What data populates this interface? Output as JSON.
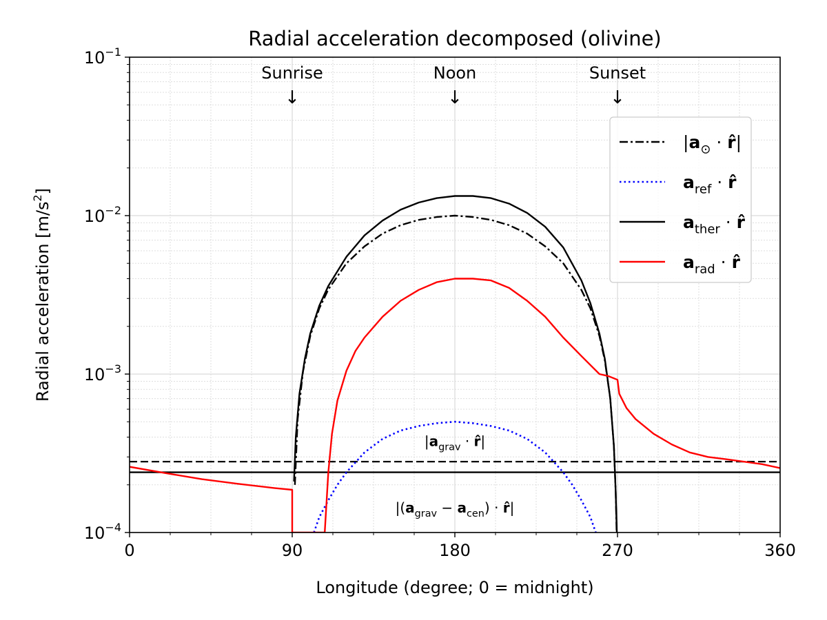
{
  "chart_data": {
    "type": "line",
    "title": "Radial acceleration decomposed (olivine)",
    "xlabel": "Longitude (degree; 0 = midnight)",
    "ylabel": "Radial acceleration [m/s",
    "ylabel_sup": "2",
    "ylabel_end": "]",
    "xlim": [
      0,
      360
    ],
    "ylim": [
      0.0001,
      0.1
    ],
    "yscale": "log",
    "grid": true,
    "legend_position": "upper-right",
    "x_ticks": [
      0,
      90,
      180,
      270,
      360
    ],
    "x_tick_labels": [
      "0",
      "90",
      "180",
      "270",
      "360"
    ],
    "y_ticks": [
      0.0001,
      0.001,
      0.01,
      0.1
    ],
    "y_tick_labels": [
      {
        "base": "10",
        "exp": "−4"
      },
      {
        "base": "10",
        "exp": "−3"
      },
      {
        "base": "10",
        "exp": "−2"
      },
      {
        "base": "10",
        "exp": "−1"
      }
    ],
    "annotations": [
      {
        "text": "Sunrise",
        "x": 90,
        "arrow": "↓"
      },
      {
        "text": "Noon",
        "x": 180,
        "arrow": "↓"
      },
      {
        "text": "Sunset",
        "x": 270,
        "arrow": "↓"
      }
    ],
    "series": [
      {
        "key": "sun",
        "legend_label": [
          {
            "t": "|",
            "s": "n"
          },
          {
            "t": "a",
            "s": "b"
          },
          {
            "t": "⊙",
            "s": "sub"
          },
          {
            "t": " · ",
            "s": "n"
          },
          {
            "t": "r̂",
            "s": "b"
          },
          {
            "t": "|",
            "s": "n"
          }
        ],
        "color": "#000000",
        "style": "dashdot",
        "x": [
          91.5,
          93,
          96,
          100,
          105,
          110,
          120,
          130,
          140,
          150,
          160,
          170,
          180,
          190,
          200,
          210,
          220,
          230,
          240,
          250,
          255,
          260,
          263,
          266,
          268,
          269,
          269.5
        ],
        "values": [
          0.0002,
          0.00052,
          0.00104,
          0.00174,
          0.0026,
          0.00342,
          0.005,
          0.0064,
          0.0077,
          0.0087,
          0.0094,
          0.0098,
          0.01,
          0.0098,
          0.0094,
          0.0087,
          0.0077,
          0.0064,
          0.005,
          0.0034,
          0.0026,
          0.00174,
          0.00122,
          0.0007,
          0.00035,
          0.00018,
          0.0001
        ]
      },
      {
        "key": "ref",
        "legend_label": [
          {
            "t": "a",
            "s": "b"
          },
          {
            "t": "ref",
            "s": "sub"
          },
          {
            "t": " · ",
            "s": "n"
          },
          {
            "t": "r̂",
            "s": "b"
          }
        ],
        "color": "#0000ff",
        "style": "dotted",
        "x": [
          102,
          105,
          110,
          115,
          120,
          130,
          140,
          150,
          160,
          170,
          180,
          190,
          200,
          210,
          220,
          230,
          240,
          245,
          250,
          255,
          258
        ],
        "values": [
          0.0001,
          0.000125,
          0.00016,
          0.0002,
          0.00024,
          0.00032,
          0.00039,
          0.00044,
          0.00047,
          0.00049,
          0.0005,
          0.00049,
          0.00047,
          0.00044,
          0.00039,
          0.00032,
          0.00024,
          0.0002,
          0.00016,
          0.000125,
          0.0001
        ]
      },
      {
        "key": "ther",
        "legend_label": [
          {
            "t": "a",
            "s": "b"
          },
          {
            "t": "ther",
            "s": "sub"
          },
          {
            "t": " · ",
            "s": "n"
          },
          {
            "t": "r̂",
            "s": "b"
          }
        ],
        "color": "#000000",
        "style": "solid",
        "x": [
          91,
          92,
          94,
          97,
          100,
          105,
          110,
          120,
          130,
          140,
          150,
          160,
          170,
          180,
          190,
          200,
          210,
          220,
          230,
          240,
          250,
          255,
          260,
          263,
          266,
          268,
          269,
          269.6
        ],
        "values": [
          0.00021,
          0.0004,
          0.00075,
          0.00125,
          0.0018,
          0.0027,
          0.0036,
          0.0055,
          0.0075,
          0.0093,
          0.0109,
          0.0121,
          0.0129,
          0.0133,
          0.0133,
          0.0129,
          0.0119,
          0.0104,
          0.0085,
          0.0063,
          0.0039,
          0.0028,
          0.0018,
          0.00125,
          0.0007,
          0.00035,
          0.00018,
          0.0001
        ]
      },
      {
        "key": "rad",
        "legend_label": [
          {
            "t": "a",
            "s": "b"
          },
          {
            "t": "rad",
            "s": "sub"
          },
          {
            "t": " · ",
            "s": "n"
          },
          {
            "t": "r̂",
            "s": "b"
          }
        ],
        "color": "#ff0000",
        "style": "solid",
        "x": [
          0,
          20,
          40,
          60,
          80,
          90,
          90,
          108,
          110,
          112,
          115,
          120,
          125,
          130,
          140,
          150,
          160,
          170,
          180,
          190,
          200,
          210,
          220,
          230,
          240,
          250,
          260,
          265,
          270,
          271,
          275,
          280,
          290,
          300,
          310,
          320,
          330,
          340,
          350,
          360
        ],
        "values": [
          0.00026,
          0.000237,
          0.000217,
          0.000203,
          0.000191,
          0.000186,
          0.0001,
          0.0001,
          0.00024,
          0.00042,
          0.00068,
          0.00105,
          0.0014,
          0.0017,
          0.0023,
          0.0029,
          0.0034,
          0.0038,
          0.004,
          0.004,
          0.0039,
          0.0035,
          0.0029,
          0.0023,
          0.0017,
          0.0013,
          0.001,
          0.00097,
          0.00092,
          0.00075,
          0.00061,
          0.00052,
          0.00042,
          0.00036,
          0.00032,
          0.0003,
          0.00029,
          0.00028,
          0.00027,
          0.000255
        ]
      }
    ],
    "hlines": [
      {
        "key": "grav",
        "y": 0.00028,
        "color": "#000000",
        "style": "dashed",
        "label": [
          {
            "t": "|",
            "s": "n"
          },
          {
            "t": "a",
            "s": "b"
          },
          {
            "t": "grav",
            "s": "sub"
          },
          {
            "t": " · ",
            "s": "n"
          },
          {
            "t": "r̂",
            "s": "b"
          },
          {
            "t": "|",
            "s": "n"
          }
        ],
        "label_x": 180,
        "label_y": 0.00038
      },
      {
        "key": "gravcen",
        "y": 0.00024,
        "color": "#000000",
        "style": "solid",
        "label": [
          {
            "t": "|(",
            "s": "n"
          },
          {
            "t": "a",
            "s": "b"
          },
          {
            "t": "grav",
            "s": "sub"
          },
          {
            "t": " − ",
            "s": "n"
          },
          {
            "t": "a",
            "s": "b"
          },
          {
            "t": "cen",
            "s": "sub"
          },
          {
            "t": ") · ",
            "s": "n"
          },
          {
            "t": "r̂",
            "s": "b"
          },
          {
            "t": "|",
            "s": "n"
          }
        ],
        "label_x": 180,
        "label_y": 0.000145
      }
    ]
  }
}
